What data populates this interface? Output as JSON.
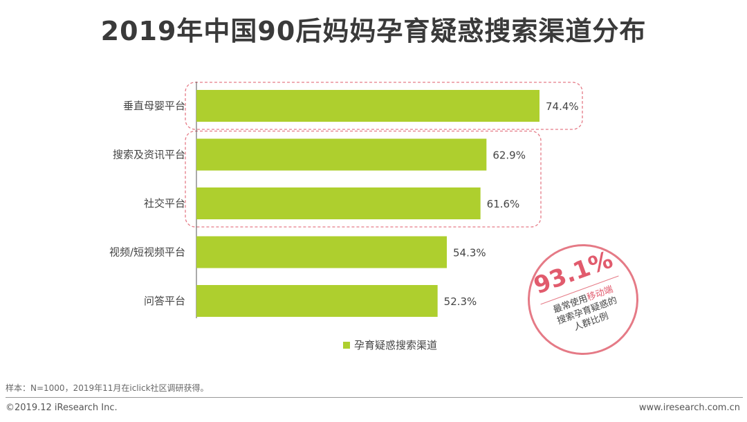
{
  "title": "2019年中国90后妈妈孕育疑惑搜索渠道分布",
  "chart_data": {
    "type": "bar",
    "orientation": "horizontal",
    "categories": [
      "垂直母婴平台",
      "搜索及资讯平台",
      "社交平台",
      "视频/短视频平台",
      "问答平台"
    ],
    "series": [
      {
        "name": "孕育疑惑搜索渠道",
        "values": [
          74.4,
          62.9,
          61.6,
          54.3,
          52.3
        ],
        "color": "#aecf2e"
      }
    ],
    "value_labels": [
      "74.4%",
      "62.9%",
      "61.6%",
      "54.3%",
      "52.3%"
    ],
    "unit": "%",
    "xlim": [
      0,
      100
    ],
    "grid": false,
    "legend_position": "bottom",
    "highlight_color": "#e57a86"
  },
  "badge": {
    "value": "93.1%",
    "line1_prefix": "最常使用",
    "line1_highlight": "移动端",
    "line2": "搜索孕育疑惑的",
    "line3": "人群比例"
  },
  "footer": {
    "note": "样本：N=1000，2019年11月在iclick社区调研获得。",
    "copyright": "©2019.12 iResearch Inc.",
    "website": "www.iresearch.com.cn"
  }
}
